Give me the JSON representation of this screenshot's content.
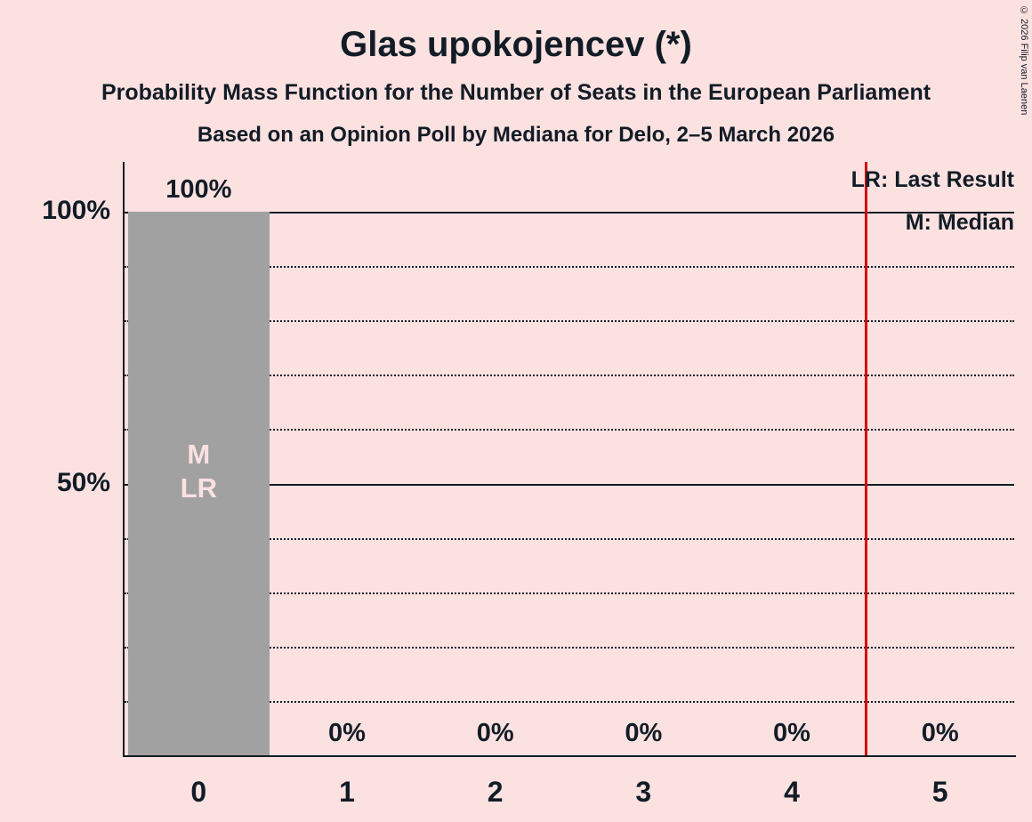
{
  "title": "Glas upokojencev (*)",
  "subtitle": "Probability Mass Function for the Number of Seats in the European Parliament",
  "poll_info": "Based on an Opinion Poll by Mediana for Delo, 2–5 March 2026",
  "copyright": "© 2026 Filip van Laenen",
  "legend": {
    "last_result": "LR: Last Result",
    "median": "M: Median"
  },
  "colors": {
    "background": "#FCE1E1",
    "bar": "#A1A1A1",
    "bar_inner_text": "#FCE1E1",
    "marker_line": "#D40A0A",
    "text": "#121C26"
  },
  "chart_data": {
    "type": "bar",
    "title": "Glas upokojencev (*)",
    "categories": [
      "0",
      "1",
      "2",
      "3",
      "4",
      "5"
    ],
    "values": [
      100,
      0,
      0,
      0,
      0,
      0
    ],
    "bar_labels": [
      "100%",
      "0%",
      "0%",
      "0%",
      "0%",
      "0%"
    ],
    "ylim": [
      0,
      100
    ],
    "yticks": [
      {
        "value": 100,
        "label": "100%"
      },
      {
        "value": 50,
        "label": "50%"
      }
    ],
    "gridline_step": 10,
    "grid": true,
    "legend_position": "top-right",
    "median_bar_index": 0,
    "bar_inner_labels": [
      "M",
      "LR"
    ],
    "marker_line_x": 4.5
  }
}
